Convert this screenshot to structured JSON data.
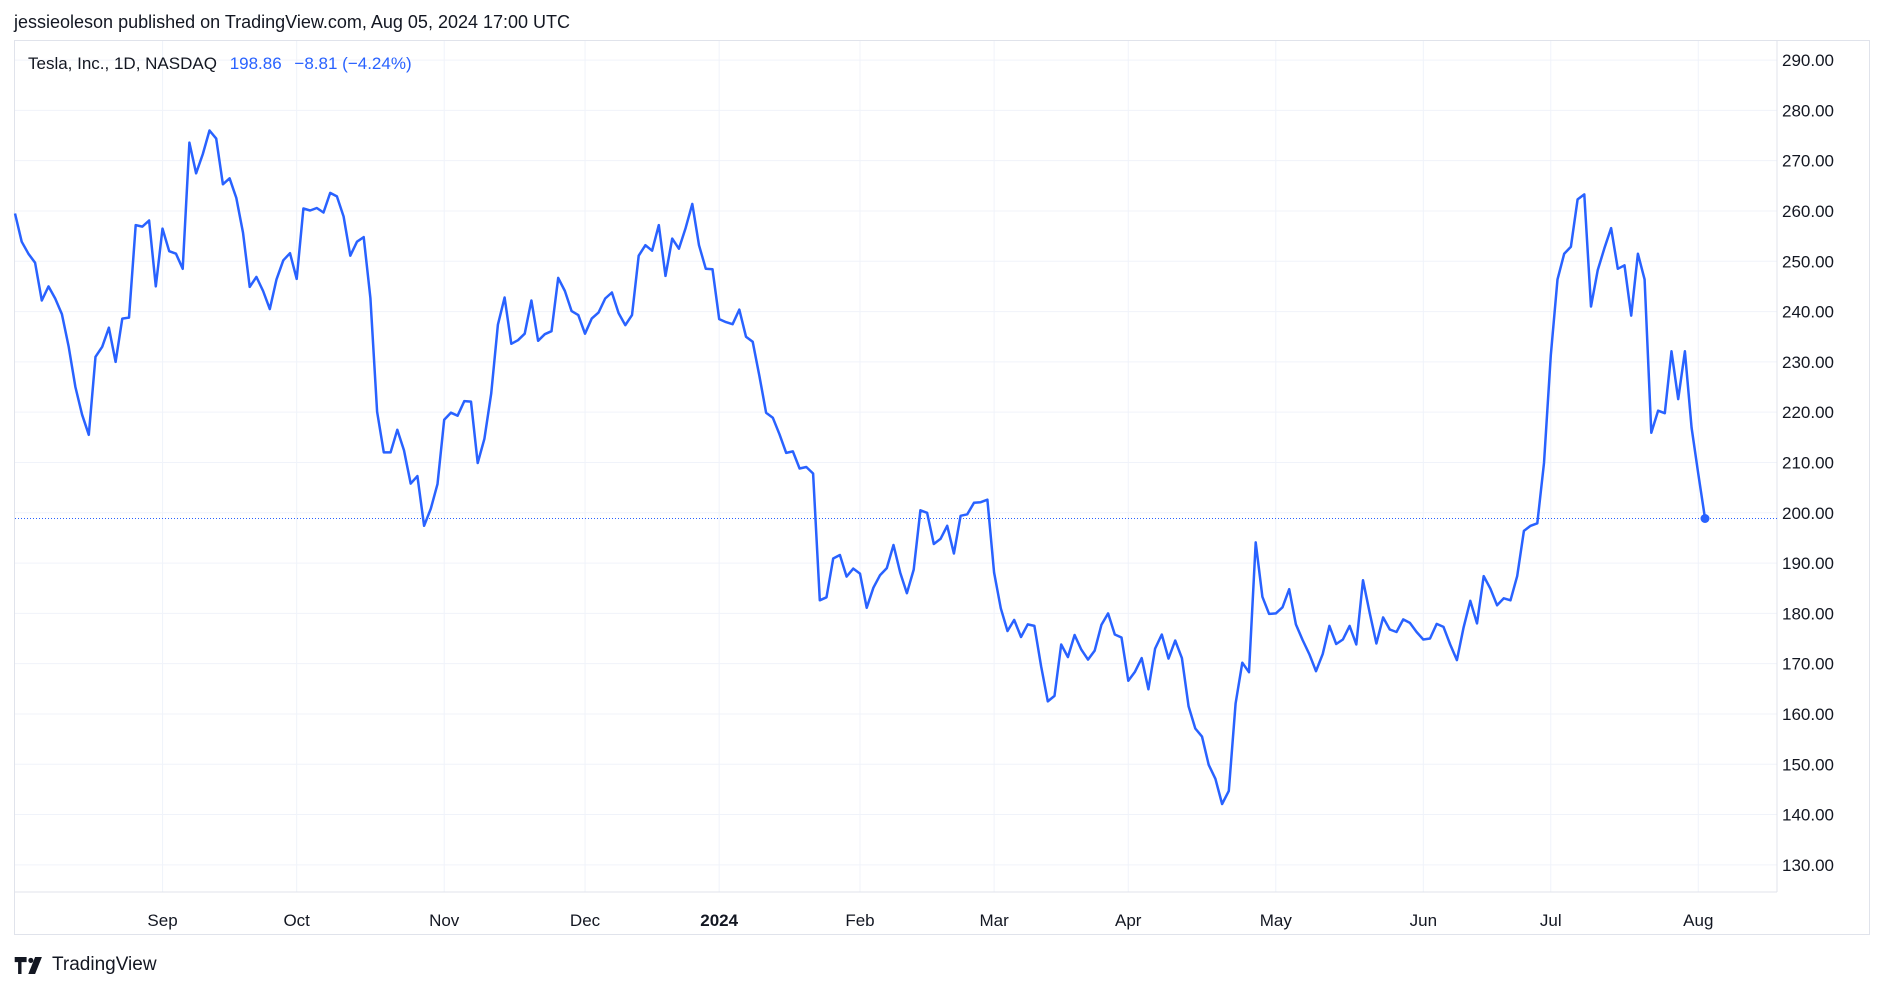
{
  "header": {
    "text": "jessieoleson published on TradingView.com, Aug 05, 2024 17:00 UTC"
  },
  "legend": {
    "symbol": "Tesla, Inc., 1D, NASDAQ",
    "price": "198.86",
    "change": "−8.81 (−4.24%)"
  },
  "footer": {
    "brand": "TradingView",
    "logo_icon": "tradingview-logo-icon"
  },
  "colors": {
    "line": "#2962ff",
    "grid": "#f0f3fa",
    "frame": "#e0e3eb"
  },
  "chart_data": {
    "type": "line",
    "ylim": [
      125,
      293
    ],
    "y_ticks": [
      "290.00",
      "280.00",
      "270.00",
      "260.00",
      "250.00",
      "240.00",
      "230.00",
      "220.00",
      "210.00",
      "200.00",
      "190.00",
      "180.00",
      "170.00",
      "160.00",
      "150.00",
      "140.00",
      "130.00"
    ],
    "x_ticks": [
      {
        "label": "Sep",
        "index": 22,
        "bold": false
      },
      {
        "label": "Oct",
        "index": 42,
        "bold": false
      },
      {
        "label": "Nov",
        "index": 64,
        "bold": false
      },
      {
        "label": "Dec",
        "index": 85,
        "bold": false
      },
      {
        "label": "2024",
        "index": 105,
        "bold": true
      },
      {
        "label": "Feb",
        "index": 126,
        "bold": false
      },
      {
        "label": "Mar",
        "index": 146,
        "bold": false
      },
      {
        "label": "Apr",
        "index": 166,
        "bold": false
      },
      {
        "label": "May",
        "index": 188,
        "bold": false
      },
      {
        "label": "Jun",
        "index": 210,
        "bold": false
      },
      {
        "label": "Jul",
        "index": 229,
        "bold": false
      },
      {
        "label": "Aug",
        "index": 251,
        "bold": false
      }
    ],
    "last_value": 198.86,
    "series": [
      {
        "values": [
          259.5,
          253.9,
          251.5,
          249.7,
          242.2,
          245.0,
          242.6,
          239.5,
          233.0,
          225.0,
          219.5,
          215.5,
          231.0,
          233.0,
          236.8,
          230.0,
          238.6,
          238.8,
          257.2,
          256.9,
          258.1,
          245.0,
          256.5,
          252.0,
          251.5,
          248.5,
          273.6,
          267.5,
          271.3,
          276.0,
          274.4,
          265.3,
          266.5,
          262.6,
          255.7,
          244.9,
          246.9,
          244.1,
          240.5,
          246.4,
          250.2,
          251.6,
          246.5,
          260.5,
          260.1,
          260.6,
          259.7,
          263.6,
          262.9,
          258.9,
          251.1,
          253.9,
          254.8,
          242.7,
          220.1,
          212.0,
          212.0,
          216.5,
          212.4,
          205.8,
          207.3,
          197.4,
          200.8,
          205.7,
          218.5,
          219.9,
          219.3,
          222.2,
          222.1,
          209.9,
          214.7,
          223.7,
          237.4,
          242.8,
          233.6,
          234.3,
          235.6,
          242.2,
          234.2,
          235.5,
          236.1,
          246.7,
          244.1,
          240.1,
          239.3,
          235.6,
          238.6,
          239.8,
          242.6,
          243.8,
          239.7,
          237.3,
          239.3,
          251.1,
          253.2,
          252.1,
          257.2,
          247.1,
          254.5,
          252.5,
          256.6,
          261.4,
          253.2,
          248.5,
          248.4,
          238.5,
          237.9,
          237.5,
          240.4,
          235.0,
          234.0,
          227.2,
          219.9,
          218.9,
          215.6,
          211.9,
          212.2,
          208.8,
          209.1,
          207.8,
          182.6,
          183.2,
          190.9,
          191.6,
          187.3,
          188.9,
          187.9,
          181.1,
          185.1,
          187.6,
          189.0,
          193.6,
          188.1,
          184.0,
          188.7,
          200.5,
          200.0,
          193.8,
          194.8,
          197.4,
          191.9,
          199.4,
          199.7,
          202.0,
          202.1,
          202.6,
          188.1,
          181.0,
          176.5,
          178.7,
          175.3,
          177.8,
          177.5,
          169.5,
          162.5,
          163.6,
          173.8,
          171.3,
          175.7,
          172.8,
          170.8,
          172.6,
          177.7,
          180.0,
          175.8,
          175.2,
          166.6,
          168.4,
          171.1,
          164.9,
          173.0,
          175.8,
          171.0,
          174.6,
          171.1,
          161.5,
          157.1,
          155.5,
          149.9,
          147.1,
          142.1,
          144.7,
          162.1,
          170.2,
          168.3,
          194.1,
          183.3,
          179.9,
          180.0,
          181.2,
          184.8,
          177.8,
          174.7,
          171.9,
          168.5,
          171.9,
          177.5,
          173.9,
          174.8,
          177.5,
          173.8,
          186.6,
          180.1,
          174.0,
          179.2,
          176.8,
          176.3,
          178.8,
          178.1,
          176.3,
          174.8,
          175.0,
          177.9,
          177.3,
          173.8,
          170.7,
          177.2,
          182.5,
          178.0,
          187.4,
          184.9,
          181.6,
          183.0,
          182.6,
          187.4,
          196.4,
          197.4,
          197.9,
          209.9,
          231.3,
          246.4,
          251.5,
          252.9,
          262.3,
          263.3,
          241.0,
          248.2,
          252.6,
          256.6,
          248.5,
          249.2,
          239.2,
          251.5,
          246.4,
          215.9,
          220.3,
          219.8,
          232.1,
          222.6,
          232.1,
          216.9,
          207.7,
          198.9
        ]
      }
    ]
  }
}
